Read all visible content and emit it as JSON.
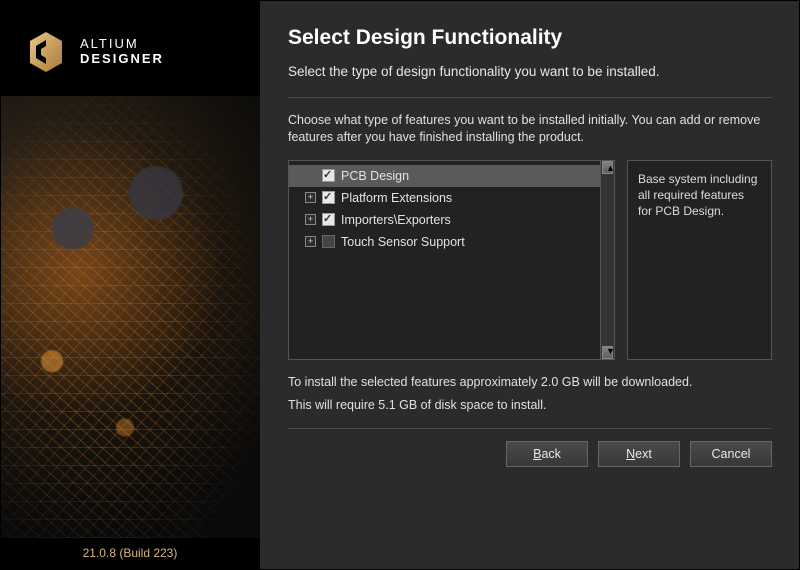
{
  "brand": {
    "line1": "ALTIUM",
    "line2": "DESIGNER"
  },
  "version": "21.0.8 (Build 223)",
  "logo_colors": {
    "fill_start": "#e0b26a",
    "fill_end": "#b3833c"
  },
  "page": {
    "title": "Select Design Functionality",
    "subtitle": "Select the type of design functionality you want to be installed.",
    "instructions": "Choose what type of features you want to be installed initially. You can add or remove features after you have finished installing the product.",
    "download_note": "To install the selected features approximately 2.0 GB will be downloaded.",
    "disk_note": "This will require 5.1 GB of disk space to install."
  },
  "features": [
    {
      "label": "PCB Design",
      "checked": true,
      "expandable": false,
      "selected": true
    },
    {
      "label": "Platform Extensions",
      "checked": true,
      "expandable": true,
      "selected": false
    },
    {
      "label": "Importers\\Exporters",
      "checked": true,
      "expandable": true,
      "selected": false
    },
    {
      "label": "Touch Sensor Support",
      "checked": false,
      "expandable": true,
      "selected": false
    }
  ],
  "description": "Base system including all required features for PCB Design.",
  "buttons": {
    "back": "Back",
    "next": "Next",
    "cancel": "Cancel"
  },
  "colors": {
    "bg": "#2b2b2b",
    "panel": "#222222",
    "border": "#555555",
    "text": "#e0e0e0",
    "version": "#d6b878"
  }
}
